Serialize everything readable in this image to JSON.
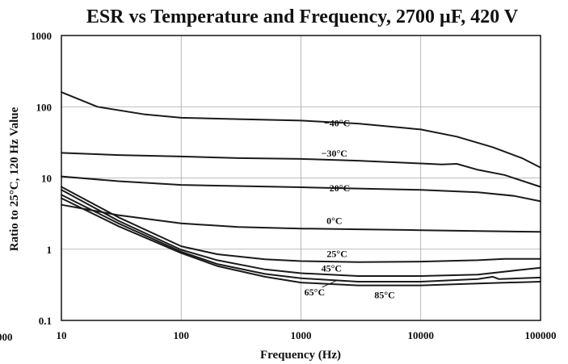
{
  "chart_data": {
    "type": "line",
    "title": "ESR vs Temperature and Frequency, 2700 µF, 420 V",
    "xlabel": "Frequency (Hz)",
    "ylabel": "Ratio to 25°C, 120 Hz Value",
    "x_scale": "log",
    "y_scale": "log",
    "xlim": [
      10,
      100000
    ],
    "ylim": [
      0.1,
      1000
    ],
    "x_ticks": [
      "10",
      "100",
      "1000",
      "10000",
      "100000"
    ],
    "y_ticks": [
      "0.1",
      "1",
      "10",
      "100",
      "1000"
    ],
    "stray_label": "000",
    "grid": true,
    "series": [
      {
        "name": "−40°C",
        "x": [
          10,
          20,
          50,
          100,
          300,
          1000,
          3000,
          10000,
          20000,
          40000,
          70000,
          100000
        ],
        "y": [
          160,
          100,
          78,
          70,
          67,
          64,
          58,
          48,
          38,
          27,
          19,
          14
        ]
      },
      {
        "name": "−30°C",
        "x": [
          10,
          30,
          100,
          300,
          1000,
          3000,
          10000,
          15000,
          20000,
          30000,
          50000,
          100000
        ],
        "y": [
          22.5,
          21,
          20,
          19,
          18.5,
          17.5,
          16,
          15.5,
          15.8,
          13,
          11,
          7.5
        ]
      },
      {
        "name": "−20°C",
        "x": [
          10,
          30,
          100,
          300,
          1000,
          3000,
          10000,
          30000,
          60000,
          100000
        ],
        "y": [
          10.5,
          9,
          8,
          7.7,
          7.4,
          7.1,
          6.8,
          6.3,
          5.6,
          4.7
        ]
      },
      {
        "name": "0°C",
        "x": [
          10,
          30,
          100,
          300,
          1000,
          3000,
          10000,
          30000,
          100000
        ],
        "y": [
          4.2,
          3,
          2.3,
          2.05,
          1.95,
          1.9,
          1.85,
          1.8,
          1.75
        ]
      },
      {
        "name": "25°C",
        "x": [
          10,
          30,
          100,
          200,
          500,
          1000,
          3000,
          10000,
          30000,
          50000,
          100000
        ],
        "y": [
          7.5,
          2.8,
          1.1,
          0.85,
          0.72,
          0.68,
          0.66,
          0.67,
          0.7,
          0.73,
          0.73
        ]
      },
      {
        "name": "45°C",
        "x": [
          10,
          30,
          100,
          200,
          500,
          1000,
          3000,
          10000,
          30000,
          60000,
          100000
        ],
        "y": [
          6.8,
          2.5,
          0.98,
          0.7,
          0.52,
          0.46,
          0.42,
          0.42,
          0.44,
          0.5,
          0.55
        ]
      },
      {
        "name": "65°C",
        "x": [
          10,
          30,
          100,
          200,
          500,
          1000,
          3000,
          10000,
          30000,
          40000,
          45000,
          100000
        ],
        "y": [
          5.8,
          2.3,
          0.92,
          0.62,
          0.45,
          0.39,
          0.35,
          0.35,
          0.38,
          0.41,
          0.38,
          0.4
        ]
      },
      {
        "name": "85°C",
        "x": [
          10,
          30,
          100,
          200,
          500,
          1000,
          3000,
          10000,
          30000,
          100000
        ],
        "y": [
          5.2,
          2.1,
          0.88,
          0.58,
          0.41,
          0.34,
          0.31,
          0.31,
          0.33,
          0.35
        ]
      }
    ]
  }
}
